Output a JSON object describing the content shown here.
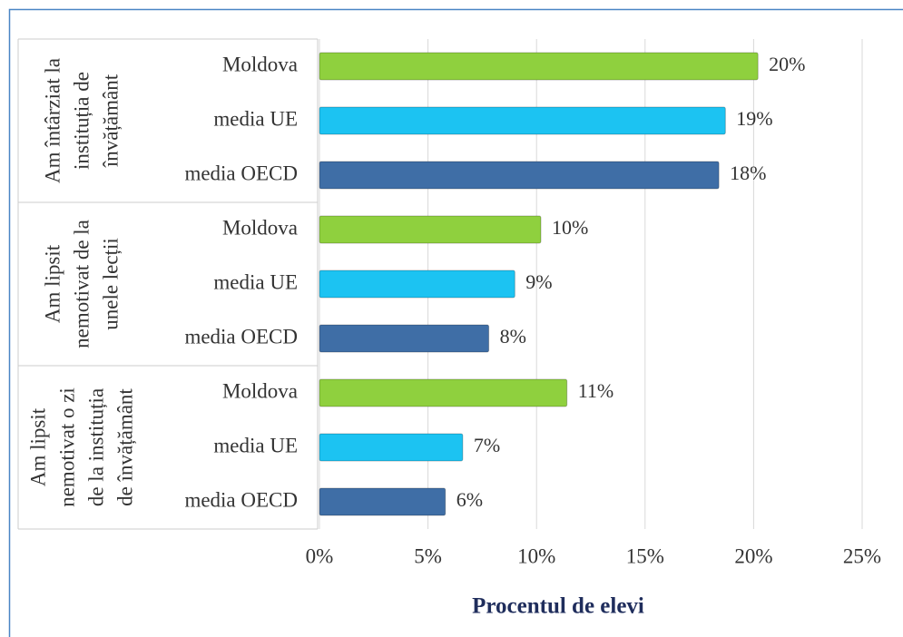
{
  "chart_data": {
    "type": "bar",
    "orientation": "horizontal",
    "x_label": "Procentul de elevi",
    "xlim": [
      0,
      25
    ],
    "xticks": [
      {
        "value": 0,
        "label": "0%"
      },
      {
        "value": 5,
        "label": "5%"
      },
      {
        "value": 10,
        "label": "10%"
      },
      {
        "value": 15,
        "label": "15%"
      },
      {
        "value": 20,
        "label": "20%"
      },
      {
        "value": 25,
        "label": "25%"
      }
    ],
    "grid": true,
    "colors": [
      "#8fd03e",
      "#1cc3f2",
      "#3f6ea6"
    ],
    "groups": [
      {
        "name": [
          "Am întârziat la",
          "instituția de",
          "învățământ"
        ],
        "categories": [
          "Moldova",
          "media UE",
          "media OECD"
        ],
        "values": [
          20.2,
          18.7,
          18.4
        ],
        "value_labels": [
          "20%",
          "19%",
          "18%"
        ]
      },
      {
        "name": [
          "Am lipsit",
          "nemotivat de la",
          "unele lecții"
        ],
        "categories": [
          "Moldova",
          "media UE",
          "media OECD"
        ],
        "values": [
          10.2,
          9.0,
          7.8
        ],
        "value_labels": [
          "10%",
          "9%",
          "8%"
        ]
      },
      {
        "name": [
          "Am lipsit",
          "nemotivat o zi",
          "de la instituția",
          "de învățământ"
        ],
        "categories": [
          "Moldova",
          "media UE",
          "media OECD"
        ],
        "values": [
          11.4,
          6.6,
          5.8
        ],
        "value_labels": [
          "11%",
          "7%",
          "6%"
        ]
      }
    ]
  }
}
